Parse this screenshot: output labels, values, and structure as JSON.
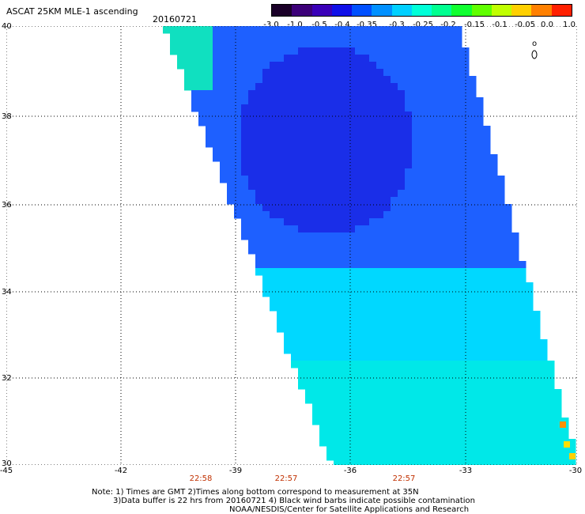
{
  "header": {
    "title": "ASCAT 25KM MLE-1 ascending",
    "date": "20160721"
  },
  "colorbar": {
    "labels": [
      "-3.0",
      "-1.0",
      "-0.5",
      "-0.4",
      "-0.35",
      "-0.3",
      "-0.25",
      "-0.2",
      "-0.15",
      "-0.1",
      "-0.05",
      "0.0",
      "1.0"
    ],
    "colors": [
      "#1a0028",
      "#3c0078",
      "#3a00b8",
      "#1010e8",
      "#0050ff",
      "#0090ff",
      "#00d0ff",
      "#00ffd8",
      "#00ff90",
      "#10ff30",
      "#60ff00",
      "#c0ff00",
      "#ffd000",
      "#ff8000",
      "#ff2000"
    ]
  },
  "axes": {
    "x_ticks": [
      "-45",
      "-42",
      "-39",
      "-36",
      "-33",
      "-30"
    ],
    "y_ticks": [
      "40",
      "38",
      "36",
      "34",
      "32",
      "30"
    ],
    "times": [
      "22:58",
      "22:57",
      "22:57"
    ]
  },
  "footer": {
    "line1": "Note: 1) Times are GMT 2)Times along bottom correspond to measurement at 35N",
    "line2": "3)Data buffer is 22 hrs from 20160721 4) Black wind barbs indicate possible contamination",
    "line3": "NOAA/NESDIS/Center for Satellite Applications and Research"
  }
}
